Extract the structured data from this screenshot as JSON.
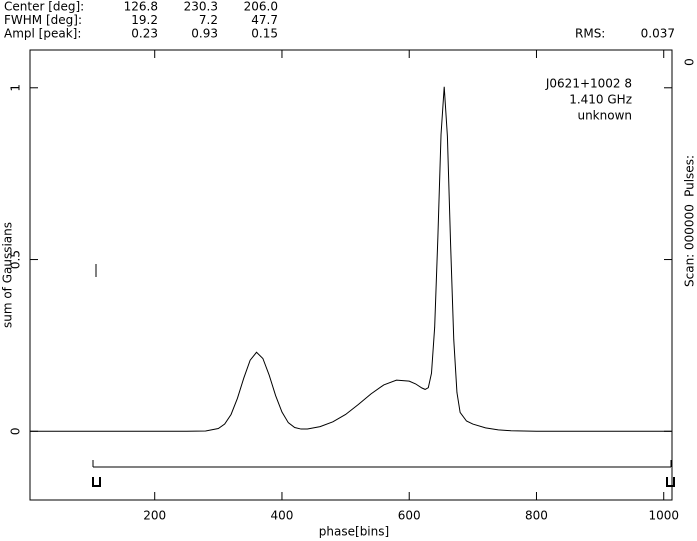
{
  "chart_data": {
    "type": "line",
    "params": [
      {
        "label": "Center [deg]:",
        "values": [
          "126.8",
          "230.3",
          "206.0"
        ]
      },
      {
        "label": "FWHM  [deg]:",
        "values": [
          "19.2",
          "7.2",
          "47.7"
        ]
      },
      {
        "label": "Ampl  [peak]:",
        "values": [
          "0.23",
          "0.93",
          "0.15"
        ]
      }
    ],
    "rms_label": "RMS:",
    "rms": "0.037",
    "pulses_label": "Pulses:",
    "pulses": "0",
    "scan": "Scan: 000000",
    "annotations": [
      "J0621+1002 8",
      "1.410 GHz",
      "unknown"
    ],
    "xlabel": "phase[bins]",
    "ylabel": "sum of Gaussians",
    "xlim": [
      4,
      1013
    ],
    "ylim": [
      -0.2,
      1.11
    ],
    "xticks": [
      200,
      400,
      600,
      800,
      1000
    ],
    "yticks": [
      0,
      0.5,
      1
    ],
    "color": "#000000",
    "x": [
      4,
      250,
      280,
      300,
      310,
      320,
      330,
      340,
      350,
      360,
      370,
      380,
      390,
      400,
      410,
      420,
      430,
      440,
      460,
      480,
      500,
      520,
      540,
      560,
      580,
      600,
      610,
      620,
      625,
      630,
      635,
      640,
      645,
      650,
      655,
      660,
      665,
      670,
      675,
      680,
      690,
      700,
      720,
      740,
      760,
      800,
      1012
    ],
    "values": [
      0,
      0,
      0.001,
      0.008,
      0.021,
      0.049,
      0.096,
      0.155,
      0.207,
      0.23,
      0.212,
      0.163,
      0.104,
      0.056,
      0.025,
      0.011,
      0.0065,
      0.0067,
      0.0137,
      0.0276,
      0.049,
      0.078,
      0.109,
      0.135,
      0.149,
      0.146,
      0.138,
      0.126,
      0.122,
      0.127,
      0.169,
      0.303,
      0.563,
      0.864,
      1.003,
      0.859,
      0.546,
      0.267,
      0.113,
      0.055,
      0.03,
      0.021,
      0.01,
      0.0042,
      0.0016,
      0.0002,
      0
    ]
  }
}
